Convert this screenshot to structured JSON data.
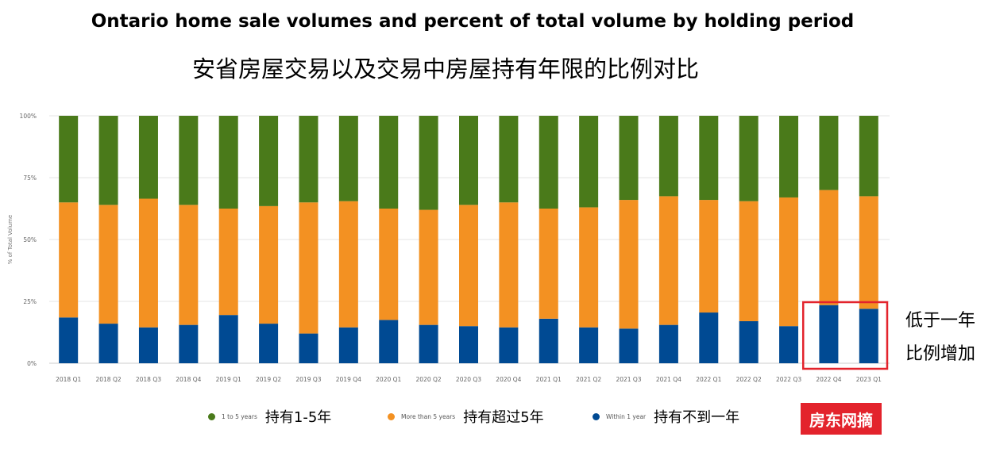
{
  "title_en": "Ontario home sale volumes and percent of total volume by holding period",
  "title_cn": "安省房屋交易以及交易中房屋持有年限的比例对比",
  "annotation": {
    "line1": "低于一年",
    "line2": "比例增加"
  },
  "watermark": "房东网摘",
  "legend": [
    {
      "label": "1 to 5 years",
      "label_cn": "持有1-5年",
      "color": "#4a7a1a"
    },
    {
      "label": "More than 5 years",
      "label_cn": "持有超过5年",
      "color": "#f39122"
    },
    {
      "label": "Within 1 year",
      "label_cn": "持有不到一年",
      "color": "#004a93"
    }
  ],
  "chart_data": {
    "type": "bar",
    "stacked": true,
    "ylabel": "% of Total Volume",
    "ylim": [
      0,
      100
    ],
    "yticks": [
      "0%",
      "25%",
      "50%",
      "75%",
      "100%"
    ],
    "categories": [
      "2018 Q1",
      "2018 Q2",
      "2018 Q3",
      "2018 Q4",
      "2019 Q1",
      "2019 Q2",
      "2019 Q3",
      "2019 Q4",
      "2020 Q1",
      "2020 Q2",
      "2020 Q3",
      "2020 Q4",
      "2021 Q1",
      "2021 Q2",
      "2021 Q3",
      "2021 Q4",
      "2022 Q1",
      "2022 Q2",
      "2022 Q3",
      "2022 Q4",
      "2023 Q1"
    ],
    "series": [
      {
        "name": "Within 1 year",
        "color": "#004a93",
        "values": [
          18.5,
          16,
          14.5,
          15.5,
          19.5,
          16,
          12,
          14.5,
          17.5,
          15.5,
          15,
          14.5,
          18,
          14.5,
          14,
          15.5,
          20.5,
          17,
          15,
          23.5,
          22
        ]
      },
      {
        "name": "More than 5 years",
        "color": "#f39122",
        "values": [
          46.5,
          48,
          52,
          48.5,
          43,
          47.5,
          53,
          51,
          45,
          46.5,
          49,
          50.5,
          44.5,
          48.5,
          52,
          52,
          45.5,
          48.5,
          52,
          46.5,
          45.5
        ]
      },
      {
        "name": "1 to 5 years",
        "color": "#4a7a1a",
        "values": [
          35,
          36,
          33.5,
          36,
          37.5,
          36.5,
          35,
          34.5,
          37.5,
          38,
          36,
          35,
          37.5,
          37,
          34,
          32.5,
          34,
          34.5,
          33,
          30,
          32.5
        ]
      }
    ],
    "highlight": {
      "categories": [
        "2022 Q4",
        "2023 Q1"
      ],
      "color": "#e3232c"
    }
  }
}
